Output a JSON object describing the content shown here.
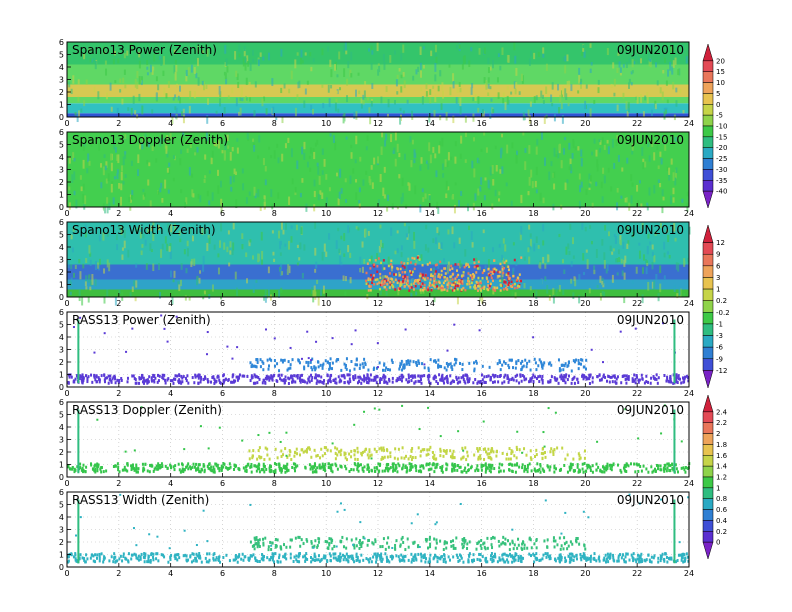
{
  "chart_data": [
    {
      "type": "heatmap",
      "title": "Spano13 Power (Zenith)",
      "date": "09JUN2010",
      "x_ticks": [
        "0",
        "2",
        "4",
        "6",
        "8",
        "10",
        "12",
        "14",
        "16",
        "18",
        "20",
        "22",
        "24"
      ],
      "xlim": [
        0,
        24
      ],
      "y_ticks": [
        "0",
        "1",
        "2",
        "3",
        "4",
        "5",
        "6"
      ],
      "ylim": [
        0,
        6
      ],
      "colorbar": "A",
      "layers": [
        {
          "y0": 0.0,
          "y1": 0.3,
          "color": "#2f55d4"
        },
        {
          "y0": 0.3,
          "y1": 1.1,
          "color": "#31c1c1"
        },
        {
          "y0": 1.1,
          "y1": 1.6,
          "color": "#5fd865"
        },
        {
          "y0": 1.6,
          "y1": 2.6,
          "color": "#d6c952"
        },
        {
          "y0": 2.6,
          "y1": 4.2,
          "color": "#5fd865"
        },
        {
          "y0": 4.2,
          "y1": 6.0,
          "color": "#34c56b"
        }
      ]
    },
    {
      "type": "heatmap",
      "title": "Spano13 Doppler (Zenith)",
      "date": "09JUN2010",
      "x_ticks": [
        "0",
        "2",
        "4",
        "6",
        "8",
        "10",
        "12",
        "14",
        "16",
        "18",
        "20",
        "22",
        "24"
      ],
      "xlim": [
        0,
        24
      ],
      "y_ticks": [
        "0",
        "1",
        "2",
        "3",
        "4",
        "5",
        "6"
      ],
      "ylim": [
        0,
        6
      ],
      "colorbar": "A",
      "layers": [
        {
          "y0": 0.0,
          "y1": 6.0,
          "color": "#43cf4f"
        }
      ]
    },
    {
      "type": "heatmap",
      "title": "Spano13 Width (Zenith)",
      "date": "09JUN2010",
      "x_ticks": [
        "0",
        "2",
        "4",
        "6",
        "8",
        "10",
        "12",
        "14",
        "16",
        "18",
        "20",
        "22",
        "24"
      ],
      "xlim": [
        0,
        24
      ],
      "y_ticks": [
        "0",
        "1",
        "2",
        "3",
        "4",
        "5",
        "6"
      ],
      "ylim": [
        0,
        6
      ],
      "colorbar": "B",
      "layers": [
        {
          "y0": 0.0,
          "y1": 0.6,
          "color": "#3fbe3f"
        },
        {
          "y0": 0.6,
          "y1": 1.4,
          "color": "#2fa3c8"
        },
        {
          "y0": 1.4,
          "y1": 2.6,
          "color": "#3a6fd0"
        },
        {
          "y0": 2.6,
          "y1": 6.0,
          "color": "#2fbfae"
        }
      ],
      "hotspots": [
        {
          "x0": 11.5,
          "x1": 17.5,
          "y0": 0.6,
          "y1": 3.4
        }
      ]
    },
    {
      "type": "scatter",
      "title": "RASS13 Power (Zenith)",
      "date": "09JUN2010",
      "x_ticks": [
        "0",
        "2",
        "4",
        "6",
        "8",
        "10",
        "12",
        "14",
        "16",
        "18",
        "20",
        "22",
        "24"
      ],
      "xlim": [
        0,
        24
      ],
      "y_ticks": [
        "0",
        "1",
        "2",
        "3",
        "4",
        "5",
        "6"
      ],
      "ylim": [
        0,
        6
      ],
      "colorbar": "B",
      "bands": [
        {
          "x0": 0.0,
          "x1": 24.0,
          "y0": 0.4,
          "y1": 1.1,
          "density": 0.8,
          "color": "#5a3ad6"
        },
        {
          "x0": 7.0,
          "x1": 20.0,
          "y0": 1.4,
          "y1": 2.4,
          "density": 0.5,
          "color": "#2f87d8"
        }
      ],
      "verticals": [
        0.4,
        23.4
      ]
    },
    {
      "type": "scatter",
      "title": "RASS13 Doppler (Zenith)",
      "date": "09JUN2010",
      "x_ticks": [
        "0",
        "2",
        "4",
        "6",
        "8",
        "10",
        "12",
        "14",
        "16",
        "18",
        "20",
        "22",
        "24"
      ],
      "xlim": [
        0,
        24
      ],
      "y_ticks": [
        "0",
        "1",
        "2",
        "3",
        "4",
        "5",
        "6"
      ],
      "ylim": [
        0,
        6
      ],
      "colorbar": "C",
      "bands": [
        {
          "x0": 0.0,
          "x1": 24.0,
          "y0": 0.5,
          "y1": 1.2,
          "density": 0.75,
          "color": "#34c54a"
        },
        {
          "x0": 7.0,
          "x1": 20.0,
          "y0": 1.5,
          "y1": 2.5,
          "density": 0.5,
          "color": "#c3d646"
        }
      ],
      "verticals": [
        0.4,
        23.4
      ]
    },
    {
      "type": "scatter",
      "title": "RASS13 Width (Zenith)",
      "date": "09JUN2010",
      "x_ticks": [
        "0",
        "2",
        "4",
        "6",
        "8",
        "10",
        "12",
        "14",
        "16",
        "18",
        "20",
        "22",
        "24"
      ],
      "xlim": [
        0,
        24
      ],
      "y_ticks": [
        "0",
        "1",
        "2",
        "3",
        "4",
        "5",
        "6"
      ],
      "ylim": [
        0,
        6
      ],
      "colorbar": "C",
      "bands": [
        {
          "x0": 0.0,
          "x1": 24.0,
          "y0": 0.5,
          "y1": 1.2,
          "density": 0.75,
          "color": "#2fb3c2"
        },
        {
          "x0": 7.0,
          "x1": 20.0,
          "y0": 1.5,
          "y1": 2.5,
          "density": 0.5,
          "color": "#36c17b"
        }
      ],
      "verticals": [
        0.4,
        23.4
      ]
    }
  ],
  "colorbars": {
    "A": {
      "labels": [
        "20",
        "15",
        "10",
        "5",
        "0",
        "-5",
        "-10",
        "-15",
        "-20",
        "-25",
        "-30",
        "-35",
        "-40"
      ],
      "colors": [
        "#d0213b",
        "#e34a55",
        "#e9765a",
        "#eea35a",
        "#e8c34f",
        "#c6d448",
        "#8fd34a",
        "#3dc947",
        "#2fbd80",
        "#2aa9c3",
        "#2f7fd3",
        "#3f4fd6",
        "#5b2fd0",
        "#7a22c6"
      ]
    },
    "B": {
      "labels": [
        "12",
        "9",
        "6",
        "3",
        "1",
        "0.2",
        "-0.2",
        "-1",
        "-3",
        "-6",
        "-9",
        "-12"
      ],
      "colors": [
        "#d0213b",
        "#e34a55",
        "#e9765a",
        "#eea35a",
        "#e8c34f",
        "#c6d448",
        "#8fd34a",
        "#3dc947",
        "#2fbd80",
        "#2aa9c3",
        "#2f7fd3",
        "#3f4fd6",
        "#7a22c6"
      ]
    },
    "C": {
      "labels": [
        "2.4",
        "2.2",
        "2",
        "1.8",
        "1.6",
        "1.4",
        "1.2",
        "1",
        "0.8",
        "0.6",
        "0.4",
        "0.2",
        "0"
      ],
      "colors": [
        "#d0213b",
        "#e34a55",
        "#e9765a",
        "#eea35a",
        "#e8c34f",
        "#c6d448",
        "#8fd34a",
        "#3dc947",
        "#2fbd80",
        "#2aa9c3",
        "#2f7fd3",
        "#3f4fd6",
        "#5b2fd0",
        "#7a22c6"
      ]
    }
  }
}
